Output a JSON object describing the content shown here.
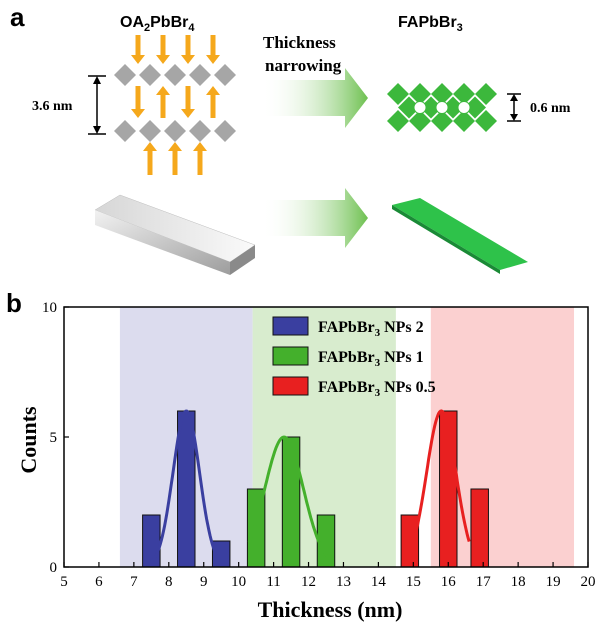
{
  "panel_a": {
    "label": "a",
    "left_title": "OA",
    "left_title_sub1": "2",
    "left_title_mid": "PbBr",
    "left_title_sub2": "4",
    "right_title": "FAPbBr",
    "right_title_sub": "3",
    "arrow_text_line1": "Thickness",
    "arrow_text_line2": "narrowing",
    "left_dim": "3.6 nm",
    "right_dim": "0.6 nm",
    "colors": {
      "octahedra_gray": "#a6a6a6",
      "octahedra_green": "#3cb83c",
      "arrow_orange": "#f5a81c",
      "arrow_green": "#79c85f",
      "slab_green": "#27a844"
    }
  },
  "panel_b": {
    "label": "b",
    "legend": [
      {
        "prefix": "FAPbBr",
        "sub": "3",
        "suffix": " NPs 2",
        "color": "#3a3fa0"
      },
      {
        "prefix": "FAPbBr",
        "sub": "3",
        "suffix": " NPs 1",
        "color": "#44b02c"
      },
      {
        "prefix": "FAPbBr",
        "sub": "3",
        "suffix": " NPs 0.5",
        "color": "#e82020"
      }
    ]
  },
  "chart_data": {
    "type": "bar",
    "xlabel": "Thickness (nm)",
    "ylabel": "Counts",
    "xlim": [
      5,
      20
    ],
    "ylim": [
      0,
      10
    ],
    "xticks": [
      5,
      6,
      7,
      8,
      9,
      10,
      11,
      12,
      13,
      14,
      15,
      16,
      17,
      18,
      19,
      20
    ],
    "yticks": [
      0,
      5,
      10
    ],
    "bar_width": 0.5,
    "shaded_regions": [
      {
        "x": [
          6.6,
          10.4
        ],
        "color": "#dcdcee"
      },
      {
        "x": [
          10.4,
          14.5
        ],
        "color": "#d8ecce"
      },
      {
        "x": [
          15.5,
          19.6
        ],
        "color": "#fbd0d0"
      }
    ],
    "series": [
      {
        "name": "FAPbBr3 NPs 2",
        "color": "#3a3fa0",
        "bars": [
          {
            "x": 7.5,
            "y": 2
          },
          {
            "x": 8.5,
            "y": 6
          },
          {
            "x": 9.5,
            "y": 1
          }
        ],
        "fit": {
          "center": 8.5,
          "height": 6,
          "sigma": 0.38,
          "range": [
            7.5,
            9.4
          ]
        }
      },
      {
        "name": "FAPbBr3 NPs 1",
        "color": "#44b02c",
        "bars": [
          {
            "x": 10.5,
            "y": 3
          },
          {
            "x": 11.5,
            "y": 5
          },
          {
            "x": 12.5,
            "y": 2
          }
        ],
        "fit": {
          "center": 11.3,
          "height": 5,
          "sigma": 0.55,
          "range": [
            10.3,
            12.6
          ]
        }
      },
      {
        "name": "FAPbBr3 NPs 0.5",
        "color": "#e82020",
        "bars": [
          {
            "x": 14.9,
            "y": 2
          },
          {
            "x": 16.0,
            "y": 6
          },
          {
            "x": 16.9,
            "y": 3
          }
        ],
        "fit": {
          "center": 15.8,
          "height": 6,
          "sigma": 0.42,
          "range": [
            14.9,
            16.6
          ]
        }
      }
    ]
  }
}
